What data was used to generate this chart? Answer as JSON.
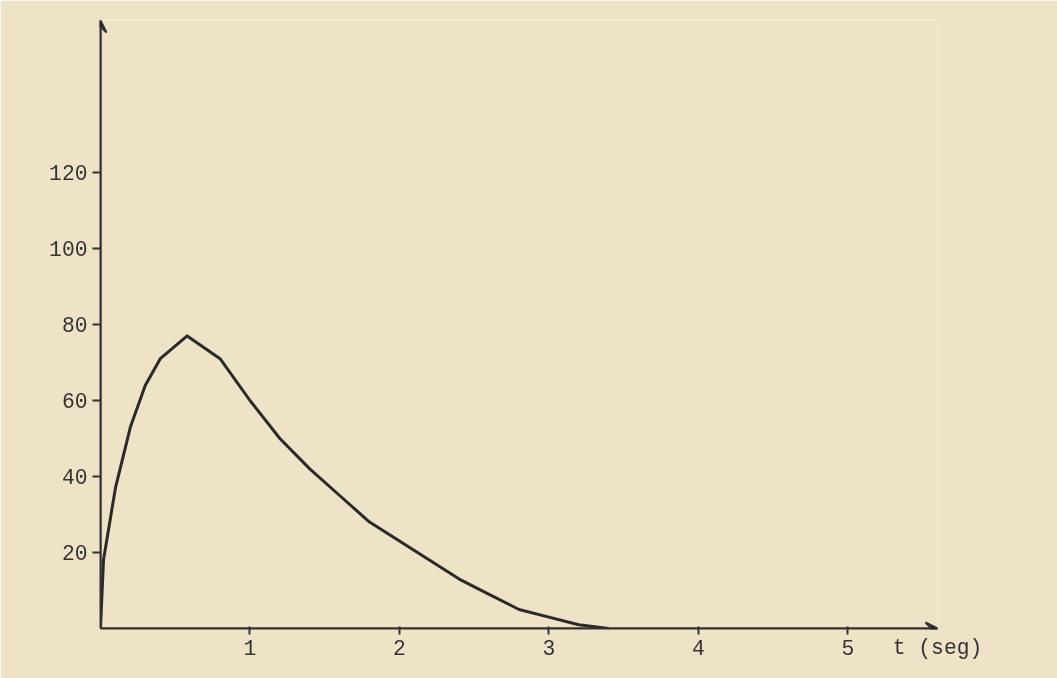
{
  "chart_data": {
    "type": "line",
    "xlabel": "t (seg)",
    "x": [
      0,
      0.02,
      0.1,
      0.2,
      0.3,
      0.4,
      0.58,
      0.8,
      1.0,
      1.2,
      1.4,
      1.6,
      1.8,
      2.0,
      2.2,
      2.4,
      2.6,
      2.8,
      3.0,
      3.2,
      3.4
    ],
    "series": [
      {
        "color": "#2a2a2a",
        "values": [
          0,
          18,
          37,
          53,
          64,
          71,
          77,
          71,
          60,
          50,
          42,
          35,
          28,
          23,
          18,
          13,
          9,
          5,
          3,
          1,
          0
        ]
      }
    ],
    "xlim": [
      0,
      5.6
    ],
    "ylim": [
      0,
      160
    ],
    "xticks": [
      1,
      2,
      3,
      4,
      5
    ],
    "yticks": [
      20,
      40,
      60,
      80,
      100,
      120
    ],
    "grid": false,
    "marker": "none",
    "line_style": "solid"
  }
}
